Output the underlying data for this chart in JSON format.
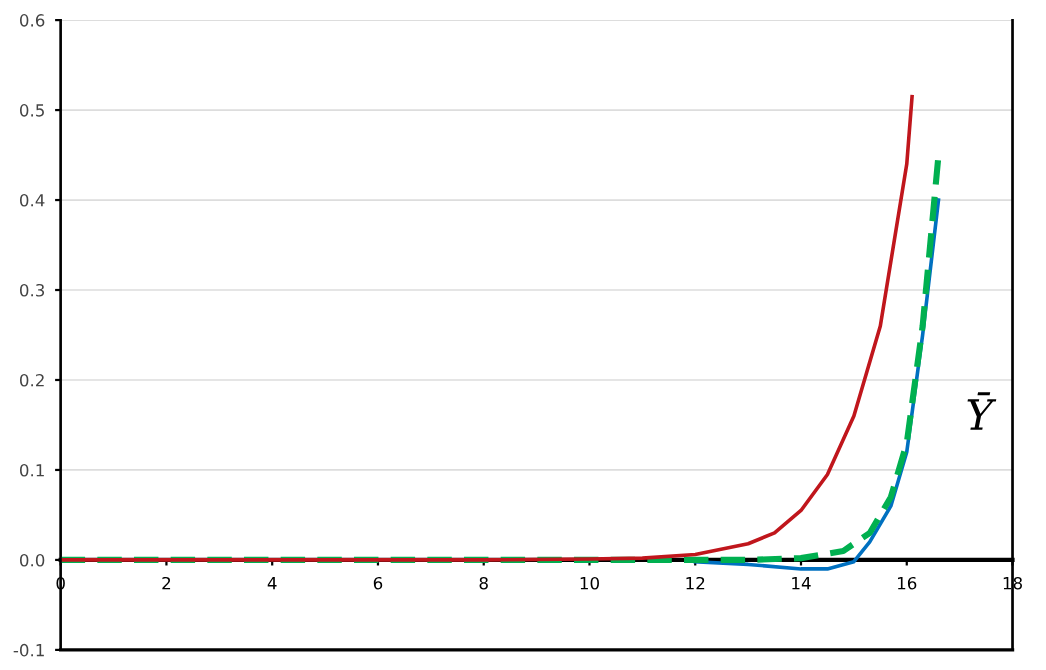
{
  "chart_data": {
    "type": "line",
    "xlabel": "Ȳ",
    "xlim": [
      0,
      18
    ],
    "xticks": [
      0,
      2,
      4,
      6,
      8,
      10,
      12,
      14,
      16,
      18
    ],
    "ylim": [
      -0.1,
      0.6
    ],
    "yticks": [
      {
        "value": -0.1,
        "label": "-0.1"
      },
      {
        "value": 0,
        "label": "0.0"
      },
      0.1,
      0.2,
      0.3,
      0.4,
      0.5,
      0.6
    ],
    "grid": "y",
    "marker": "none",
    "series": [
      {
        "color": "#c0161c",
        "line_style": "solid",
        "x": [
          0,
          2,
          4,
          6,
          8,
          10,
          11,
          12,
          13,
          13.5,
          14,
          14.5,
          15,
          15.5,
          16,
          16.1
        ],
        "values": [
          0,
          0,
          0,
          0,
          0,
          0.001,
          0.002,
          0.006,
          0.018,
          0.03,
          0.055,
          0.095,
          0.16,
          0.26,
          0.44,
          0.515
        ]
      },
      {
        "color": "#00b050",
        "line_style": "dashed",
        "x": [
          0,
          4,
          8,
          11,
          13,
          14,
          14.8,
          15.3,
          15.7,
          16,
          16.3,
          16.6
        ],
        "values": [
          0,
          0,
          0,
          0,
          0,
          0.002,
          0.01,
          0.03,
          0.07,
          0.13,
          0.26,
          0.45
        ]
      },
      {
        "color": "#0070c0",
        "line_style": "solid",
        "x": [
          12,
          13,
          14,
          14.5,
          15,
          15.3,
          15.7,
          16,
          16.3,
          16.6
        ],
        "values": [
          -0.002,
          -0.005,
          -0.01,
          -0.01,
          -0.002,
          0.02,
          0.06,
          0.12,
          0.25,
          0.4
        ]
      }
    ]
  }
}
